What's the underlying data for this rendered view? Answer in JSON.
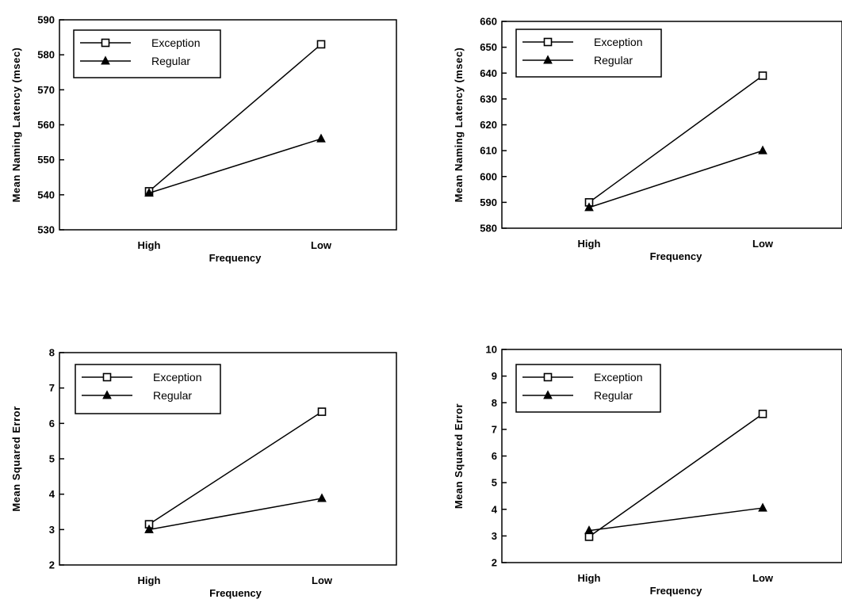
{
  "chart_data": [
    {
      "type": "line",
      "xlabel": "Frequency",
      "ylabel": "Mean Naming Latency (msec)",
      "categories": [
        "High",
        "Low"
      ],
      "ylim": [
        530,
        590
      ],
      "yticks": [
        530,
        540,
        550,
        560,
        570,
        580,
        590
      ],
      "legend_position": "top-left",
      "series": [
        {
          "name": "Exception",
          "marker": "open-square",
          "values": [
            541,
            583
          ]
        },
        {
          "name": "Regular",
          "marker": "filled-triangle",
          "values": [
            540.5,
            556
          ]
        }
      ]
    },
    {
      "type": "line",
      "xlabel": "Frequency",
      "ylabel": "Mean Naming Latency (msec)",
      "categories": [
        "High",
        "Low"
      ],
      "ylim": [
        580,
        660
      ],
      "yticks": [
        580,
        590,
        600,
        610,
        620,
        630,
        640,
        650,
        660
      ],
      "legend_position": "top-left",
      "series": [
        {
          "name": "Exception",
          "marker": "open-square",
          "values": [
            590,
            639
          ]
        },
        {
          "name": "Regular",
          "marker": "filled-triangle",
          "values": [
            588,
            610
          ]
        }
      ]
    },
    {
      "type": "line",
      "xlabel": "Frequency",
      "ylabel": "Mean Squared Error",
      "categories": [
        "High",
        "Low"
      ],
      "ylim": [
        2,
        8
      ],
      "yticks": [
        2,
        3,
        4,
        5,
        6,
        7,
        8
      ],
      "legend_position": "top-left",
      "series": [
        {
          "name": "Exception",
          "marker": "open-square",
          "values": [
            3.15,
            6.33
          ]
        },
        {
          "name": "Regular",
          "marker": "filled-triangle",
          "values": [
            3.0,
            3.88
          ]
        }
      ]
    },
    {
      "type": "line",
      "xlabel": "Frequency",
      "ylabel": "Mean Squared Error",
      "categories": [
        "High",
        "Low"
      ],
      "ylim": [
        2,
        10
      ],
      "yticks": [
        2,
        3,
        4,
        5,
        6,
        7,
        8,
        9,
        10
      ],
      "legend_position": "top-left",
      "series": [
        {
          "name": "Exception",
          "marker": "open-square",
          "values": [
            2.97,
            7.58
          ]
        },
        {
          "name": "Regular",
          "marker": "filled-triangle",
          "values": [
            3.2,
            4.05
          ]
        }
      ]
    }
  ]
}
